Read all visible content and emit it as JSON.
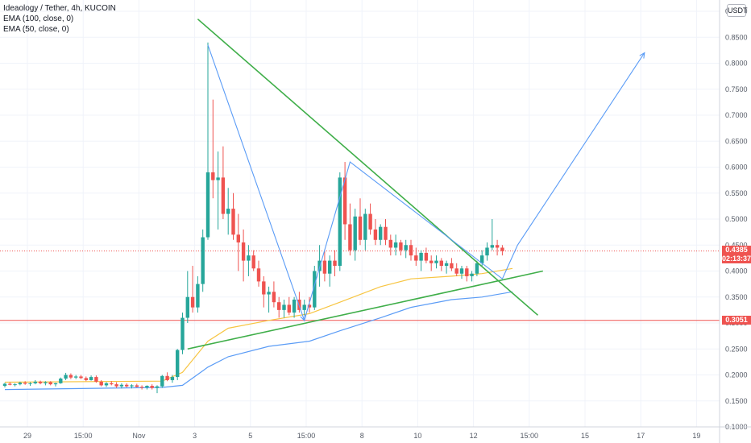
{
  "header": {
    "symbol_line": "Ideaology / Tether, 4h, KUCOIN",
    "indicators": [
      "EMA (100, close, 0)",
      "EMA (50, close, 0)"
    ],
    "currency": "USDT"
  },
  "price_tags": {
    "current": {
      "price": "0.4385",
      "countdown": "02:13:37",
      "color": "#ef5350"
    },
    "support": {
      "price": "0.3051",
      "color": "#ef5350"
    }
  },
  "chart_data": {
    "type": "candlestick",
    "title": "Ideaology / Tether, 4h, KUCOIN",
    "ylim": [
      0.1,
      0.9
    ],
    "y_ticks": [
      0.9,
      0.85,
      0.8,
      0.75,
      0.7,
      0.65,
      0.6,
      0.55,
      0.5,
      0.45,
      0.4,
      0.35,
      0.3,
      0.25,
      0.2,
      0.15,
      0.1
    ],
    "x_ticks": [
      "29",
      "15:00",
      "Nov",
      "3",
      "5",
      "15:00",
      "8",
      "10",
      "12",
      "15:00",
      "15",
      "17",
      "19"
    ],
    "grid": true,
    "colors": {
      "up": "#26a69a",
      "down": "#ef5350",
      "ema50": "#f7c542",
      "ema100": "#5b9cf6",
      "trendline": "#3fae49",
      "projection": "#5b9cf6"
    },
    "candles": [
      [
        0.179,
        0.185,
        0.176,
        0.183
      ],
      [
        0.183,
        0.186,
        0.18,
        0.181
      ],
      [
        0.181,
        0.184,
        0.178,
        0.182
      ],
      [
        0.182,
        0.187,
        0.18,
        0.185
      ],
      [
        0.185,
        0.188,
        0.181,
        0.183
      ],
      [
        0.183,
        0.186,
        0.179,
        0.184
      ],
      [
        0.184,
        0.19,
        0.182,
        0.187
      ],
      [
        0.187,
        0.189,
        0.182,
        0.184
      ],
      [
        0.184,
        0.188,
        0.18,
        0.186
      ],
      [
        0.186,
        0.188,
        0.18,
        0.182
      ],
      [
        0.182,
        0.185,
        0.178,
        0.184
      ],
      [
        0.184,
        0.195,
        0.183,
        0.193
      ],
      [
        0.193,
        0.204,
        0.19,
        0.2
      ],
      [
        0.2,
        0.203,
        0.192,
        0.195
      ],
      [
        0.195,
        0.2,
        0.192,
        0.197
      ],
      [
        0.197,
        0.2,
        0.192,
        0.194
      ],
      [
        0.194,
        0.197,
        0.188,
        0.19
      ],
      [
        0.19,
        0.199,
        0.189,
        0.196
      ],
      [
        0.196,
        0.199,
        0.185,
        0.187
      ],
      [
        0.187,
        0.19,
        0.178,
        0.18
      ],
      [
        0.18,
        0.186,
        0.177,
        0.184
      ],
      [
        0.184,
        0.188,
        0.18,
        0.182
      ],
      [
        0.182,
        0.186,
        0.175,
        0.178
      ],
      [
        0.178,
        0.184,
        0.174,
        0.181
      ],
      [
        0.181,
        0.184,
        0.176,
        0.178
      ],
      [
        0.178,
        0.182,
        0.174,
        0.18
      ],
      [
        0.18,
        0.183,
        0.176,
        0.177
      ],
      [
        0.177,
        0.18,
        0.172,
        0.176
      ],
      [
        0.176,
        0.18,
        0.172,
        0.179
      ],
      [
        0.179,
        0.182,
        0.172,
        0.175
      ],
      [
        0.175,
        0.18,
        0.165,
        0.178
      ],
      [
        0.178,
        0.2,
        0.175,
        0.198
      ],
      [
        0.198,
        0.205,
        0.188,
        0.19
      ],
      [
        0.19,
        0.2,
        0.185,
        0.196
      ],
      [
        0.196,
        0.25,
        0.19,
        0.248
      ],
      [
        0.248,
        0.32,
        0.24,
        0.31
      ],
      [
        0.31,
        0.4,
        0.3,
        0.35
      ],
      [
        0.35,
        0.41,
        0.32,
        0.33
      ],
      [
        0.33,
        0.39,
        0.32,
        0.375
      ],
      [
        0.375,
        0.48,
        0.36,
        0.465
      ],
      [
        0.465,
        0.84,
        0.46,
        0.59
      ],
      [
        0.59,
        0.73,
        0.54,
        0.575
      ],
      [
        0.575,
        0.63,
        0.48,
        0.58
      ],
      [
        0.58,
        0.64,
        0.5,
        0.51
      ],
      [
        0.51,
        0.56,
        0.47,
        0.52
      ],
      [
        0.52,
        0.55,
        0.46,
        0.47
      ],
      [
        0.47,
        0.51,
        0.4,
        0.455
      ],
      [
        0.455,
        0.48,
        0.38,
        0.42
      ],
      [
        0.42,
        0.45,
        0.39,
        0.43
      ],
      [
        0.43,
        0.44,
        0.4,
        0.405
      ],
      [
        0.405,
        0.42,
        0.37,
        0.38
      ],
      [
        0.38,
        0.39,
        0.33,
        0.355
      ],
      [
        0.355,
        0.37,
        0.32,
        0.36
      ],
      [
        0.36,
        0.38,
        0.33,
        0.34
      ],
      [
        0.34,
        0.35,
        0.31,
        0.325
      ],
      [
        0.325,
        0.345,
        0.31,
        0.335
      ],
      [
        0.335,
        0.35,
        0.315,
        0.32
      ],
      [
        0.32,
        0.35,
        0.31,
        0.345
      ],
      [
        0.345,
        0.36,
        0.32,
        0.325
      ],
      [
        0.325,
        0.345,
        0.315,
        0.335
      ],
      [
        0.335,
        0.35,
        0.32,
        0.33
      ],
      [
        0.33,
        0.41,
        0.325,
        0.4
      ],
      [
        0.4,
        0.45,
        0.37,
        0.42
      ],
      [
        0.42,
        0.44,
        0.38,
        0.395
      ],
      [
        0.395,
        0.43,
        0.37,
        0.42
      ],
      [
        0.42,
        0.44,
        0.39,
        0.41
      ],
      [
        0.41,
        0.59,
        0.4,
        0.58
      ],
      [
        0.58,
        0.61,
        0.46,
        0.49
      ],
      [
        0.49,
        0.53,
        0.43,
        0.44
      ],
      [
        0.44,
        0.52,
        0.42,
        0.505
      ],
      [
        0.505,
        0.54,
        0.45,
        0.46
      ],
      [
        0.46,
        0.52,
        0.44,
        0.51
      ],
      [
        0.51,
        0.53,
        0.47,
        0.48
      ],
      [
        0.48,
        0.5,
        0.45,
        0.46
      ],
      [
        0.46,
        0.49,
        0.45,
        0.485
      ],
      [
        0.485,
        0.5,
        0.45,
        0.46
      ],
      [
        0.46,
        0.47,
        0.43,
        0.445
      ],
      [
        0.445,
        0.47,
        0.43,
        0.455
      ],
      [
        0.455,
        0.46,
        0.43,
        0.44
      ],
      [
        0.44,
        0.46,
        0.425,
        0.45
      ],
      [
        0.45,
        0.46,
        0.42,
        0.43
      ],
      [
        0.43,
        0.445,
        0.41,
        0.42
      ],
      [
        0.42,
        0.44,
        0.4,
        0.435
      ],
      [
        0.435,
        0.445,
        0.415,
        0.42
      ],
      [
        0.42,
        0.43,
        0.4,
        0.415
      ],
      [
        0.415,
        0.43,
        0.405,
        0.42
      ],
      [
        0.42,
        0.425,
        0.4,
        0.41
      ],
      [
        0.41,
        0.42,
        0.395,
        0.415
      ],
      [
        0.415,
        0.425,
        0.4,
        0.405
      ],
      [
        0.405,
        0.415,
        0.39,
        0.395
      ],
      [
        0.395,
        0.41,
        0.385,
        0.405
      ],
      [
        0.405,
        0.41,
        0.38,
        0.39
      ],
      [
        0.39,
        0.4,
        0.38,
        0.395
      ],
      [
        0.395,
        0.42,
        0.39,
        0.415
      ],
      [
        0.415,
        0.44,
        0.41,
        0.43
      ],
      [
        0.43,
        0.455,
        0.42,
        0.445
      ],
      [
        0.445,
        0.5,
        0.44,
        0.45
      ],
      [
        0.45,
        0.46,
        0.43,
        0.445
      ],
      [
        0.445,
        0.45,
        0.43,
        0.4385
      ]
    ],
    "ema50": [
      [
        0,
        0.186
      ],
      [
        31,
        0.188
      ],
      [
        35,
        0.205
      ],
      [
        40,
        0.265
      ],
      [
        44,
        0.29
      ],
      [
        52,
        0.305
      ],
      [
        60,
        0.318
      ],
      [
        66,
        0.34
      ],
      [
        74,
        0.37
      ],
      [
        80,
        0.385
      ],
      [
        88,
        0.39
      ],
      [
        94,
        0.395
      ],
      [
        100,
        0.405
      ]
    ],
    "ema100": [
      [
        0,
        0.172
      ],
      [
        31,
        0.176
      ],
      [
        35,
        0.18
      ],
      [
        40,
        0.215
      ],
      [
        44,
        0.235
      ],
      [
        52,
        0.255
      ],
      [
        60,
        0.265
      ],
      [
        66,
        0.285
      ],
      [
        74,
        0.31
      ],
      [
        80,
        0.33
      ],
      [
        88,
        0.345
      ],
      [
        94,
        0.35
      ],
      [
        100,
        0.36
      ]
    ],
    "trendlines": [
      {
        "from": [
          38,
          0.885
        ],
        "to": [
          105,
          0.315
        ]
      },
      {
        "from": [
          36,
          0.25
        ],
        "to": [
          106,
          0.4
        ]
      }
    ],
    "projection_path": [
      [
        40,
        0.835
      ],
      [
        59,
        0.305
      ],
      [
        68,
        0.61
      ],
      [
        98,
        0.385
      ],
      [
        101,
        0.45
      ],
      [
        126,
        0.82
      ]
    ],
    "horizontal_lines": [
      {
        "price": 0.4385,
        "style": "dotted"
      },
      {
        "price": 0.3051,
        "style": "solid"
      }
    ]
  }
}
